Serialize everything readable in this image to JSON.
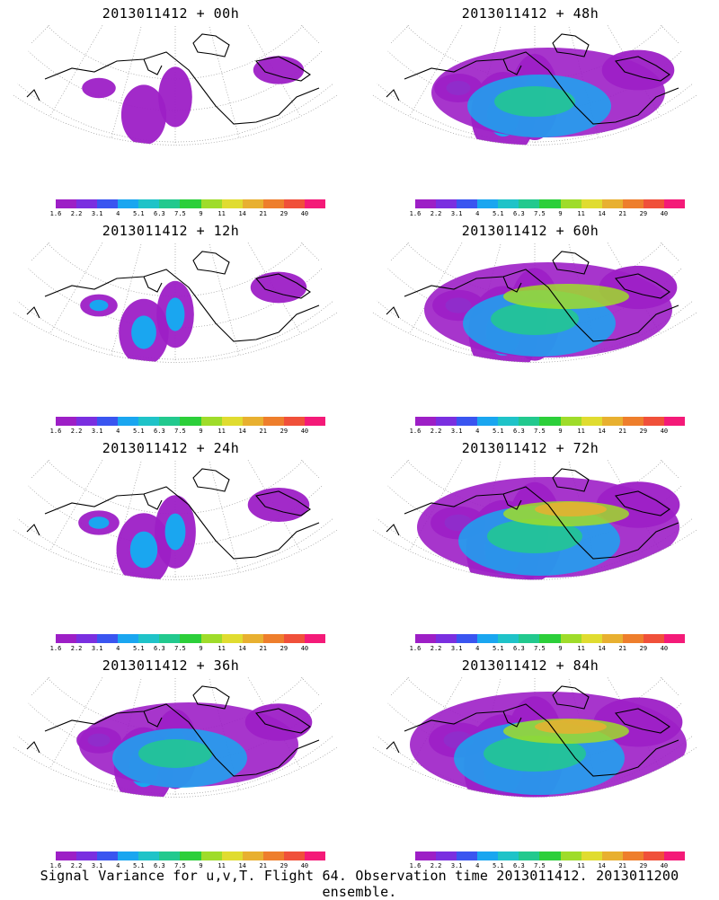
{
  "panels": [
    {
      "title": "2013011412 + 00h"
    },
    {
      "title": "2013011412 + 48h"
    },
    {
      "title": "2013011412 + 12h"
    },
    {
      "title": "2013011412 + 60h"
    },
    {
      "title": "2013011412 + 24h"
    },
    {
      "title": "2013011412 + 72h"
    },
    {
      "title": "2013011412 + 36h"
    },
    {
      "title": "2013011412 + 84h"
    }
  ],
  "colorbar": {
    "labels": [
      "1.6",
      "2.2",
      "3.1",
      "4",
      "5.1",
      "6.3",
      "7.5",
      "9",
      "11",
      "14",
      "21",
      "29",
      "40"
    ],
    "colors": [
      "#9d1fc6",
      "#7a2fe0",
      "#3a55f0",
      "#1aa6f0",
      "#1fc3c8",
      "#22c98e",
      "#2ccf3a",
      "#9fdc2a",
      "#e0dc30",
      "#e8b030",
      "#ee7e2c",
      "#f0503a",
      "#f41a78"
    ]
  },
  "caption": "Signal Variance for u,v,T. Flight 64. Observation time 2013011412. 2013011200 ensemble."
}
